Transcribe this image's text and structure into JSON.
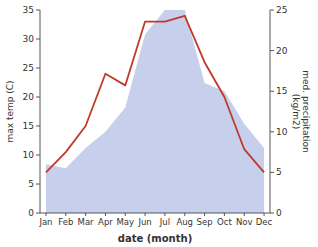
{
  "chart_data": {
    "type": "line",
    "xlabel": "date (month)",
    "ylabel": "max temp (C)",
    "y2label": "med. precipitation\n(kg/m2)",
    "categories": [
      "Jan",
      "Feb",
      "Mar",
      "Apr",
      "May",
      "Jun",
      "Jul",
      "Aug",
      "Sep",
      "Oct",
      "Nov",
      "Dec"
    ],
    "series": [
      {
        "type": "area",
        "axis": "y2",
        "color": "#b8c4e8",
        "values": [
          6,
          5.5,
          8,
          10,
          13,
          22,
          25,
          25,
          16,
          15,
          11,
          8
        ]
      },
      {
        "type": "line",
        "color": "#c0392b",
        "values": [
          7,
          10.5,
          15,
          24,
          22,
          33,
          33,
          34,
          26,
          20,
          11,
          7
        ]
      }
    ],
    "ylim": [
      0,
      35
    ],
    "yticks": [
      0,
      5,
      10,
      15,
      20,
      25,
      30,
      35
    ],
    "y2lim": [
      0,
      25
    ],
    "y2ticks": [
      0,
      5,
      10,
      15,
      20,
      25
    ],
    "grid": false
  }
}
